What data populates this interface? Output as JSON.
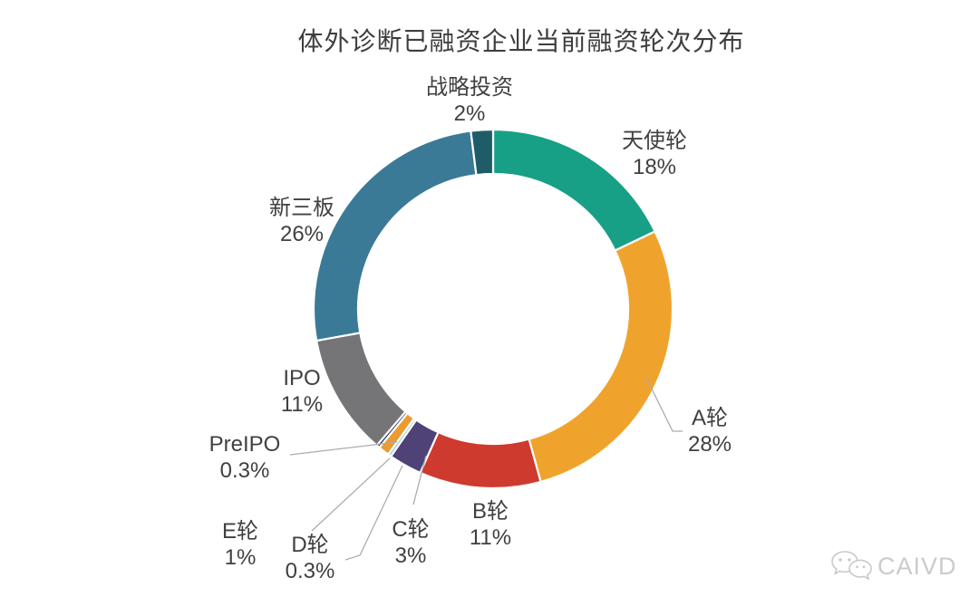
{
  "title": "体外诊断已融资企业当前融资轮次分布",
  "chart_data": {
    "type": "pie",
    "subtype": "donut",
    "title": "体外诊断已融资企业当前融资轮次分布",
    "unit": "percent",
    "start_angle_deg": 0,
    "direction": "clockwise",
    "legend_position": "none",
    "label_color": "#404040",
    "leader_line_color": "#ACACAC",
    "segments": [
      {
        "id": "angel",
        "label": "天使轮",
        "value": 18,
        "display": "18%",
        "color": "#17A086"
      },
      {
        "id": "round-a",
        "label": "A轮",
        "value": 28,
        "display": "28%",
        "color": "#F0A32C"
      },
      {
        "id": "round-b",
        "label": "B轮",
        "value": 11,
        "display": "11%",
        "color": "#CE3A2E"
      },
      {
        "id": "round-c",
        "label": "C轮",
        "value": 3,
        "display": "3%",
        "color": "#4E4277"
      },
      {
        "id": "round-d",
        "label": "D轮",
        "value": 0.3,
        "display": "0.3%",
        "color": "#8FCEE6"
      },
      {
        "id": "round-e",
        "label": "E轮",
        "value": 1,
        "display": "1%",
        "color": "#EC9B33"
      },
      {
        "id": "pre-ipo",
        "label": "PreIPO",
        "value": 0.3,
        "display": "0.3%",
        "color": "#1F3B66"
      },
      {
        "id": "ipo",
        "label": "IPO",
        "value": 11,
        "display": "11%",
        "color": "#757578"
      },
      {
        "id": "neeq",
        "label": "新三板",
        "value": 26,
        "display": "26%",
        "color": "#3A7A96"
      },
      {
        "id": "strategic",
        "label": "战略投资",
        "value": 2,
        "display": "2%",
        "color": "#1E5C68"
      }
    ]
  },
  "watermark": {
    "text": "CAIVD",
    "icon": "wechat-logo-icon",
    "color": "#CBCBCB"
  }
}
